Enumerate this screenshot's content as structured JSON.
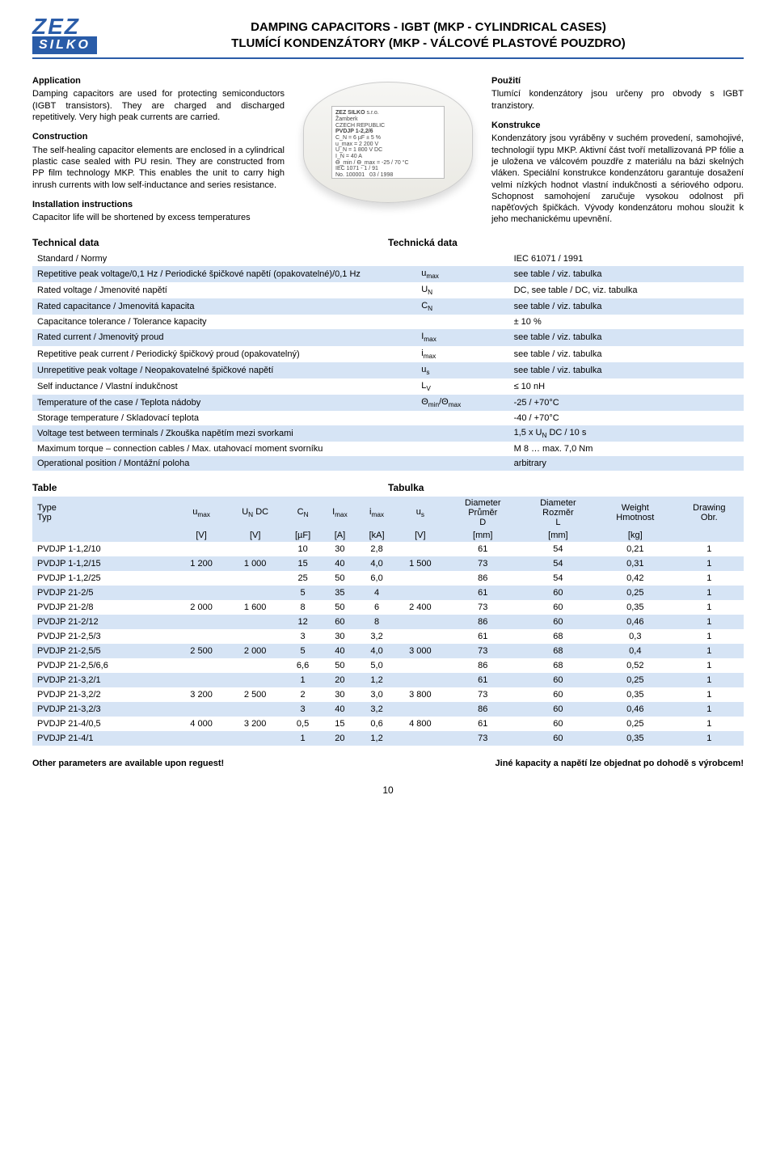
{
  "logo": {
    "top": "ZEZ",
    "bottom": "SILKO"
  },
  "title_en": "DAMPING CAPACITORS - IGBT (MKP - CYLINDRICAL CASES)",
  "title_cz": "TLUMÍCÍ KONDENZÁTORY (MKP - VÁLCOVÉ PLASTOVÉ POUZDRO)",
  "divider_color": "#2a5ca8",
  "stripe_even": "#d6e4f5",
  "left": {
    "h1": "Application",
    "p1": "Damping capacitors are used for protecting semiconductors (IGBT transistors). They are charged and discharged repetitively. Very high peak currents are carried.",
    "h2": "Construction",
    "p2": "The self-healing capacitor elements are enclosed in a cylindrical plastic case sealed with PU resin. They are constructed from PP film technology MKP. This enables the unit to carry high inrush currents with low self-inductance and series resistance.",
    "h3": "Installation instructions",
    "p3": "Capacitor life will be shortened by excess temperatures"
  },
  "right": {
    "h1": "Použití",
    "p1": "Tlumící kondenzátory jsou určeny pro obvody s IGBT tranzistory.",
    "h2": "Konstrukce",
    "p2": "Kondenzátory jsou vyráběny v suchém provedení, samohojivé, technologií typu MKP. Aktivní část tvoří metallizovaná PP fólie a je uložena ve válcovém pouzdře z materiálu na bázi skelných vláken. Speciální konstrukce kondenzátoru garantuje dosažení velmi nízkých hodnot vlastní indukčnosti a sériového odporu. Schopnost samohojení zaručuje vysokou odolnost při napěťových špičkách. Vývody kondenzátoru mohou sloužit k jeho mechanickému upevnění."
  },
  "photo_label": {
    "brand": "ZEZ SILKO",
    "loc": "Žamberk",
    "country": "CZECH REPUBLIC",
    "type": "PVDJP 1-2,2/6",
    "lines": "C_N = 6 µF ± 5 %\nu_max = 2 200 V\nU_N = 1 800 V DC\nI_N = 40 A\nϴ_min / ϴ_max = -25 / 70 °C\nIEC 1071 - 1 / 91",
    "no": "No. 100001",
    "date": "03 / 1998"
  },
  "techdata": {
    "title_en": "Technical data",
    "title_cz": "Technická data",
    "rows": [
      {
        "param": "Standard / Normy",
        "sym": "",
        "val": "IEC 61071 / 1991"
      },
      {
        "param": "Repetitive peak voltage/0,1 Hz / Periodické špičkové napětí (opakovatelné)/0,1 Hz",
        "sym": "u_max",
        "val": "see table / viz. tabulka"
      },
      {
        "param": "Rated voltage / Jmenovité napětí",
        "sym": "U_N",
        "val": "DC, see table / DC, viz. tabulka"
      },
      {
        "param": "Rated capacitance / Jmenovitá kapacita",
        "sym": "C_N",
        "val": "see table / viz. tabulka"
      },
      {
        "param": "Capacitance tolerance / Tolerance kapacity",
        "sym": "",
        "val": "± 10 %"
      },
      {
        "param": "Rated current / Jmenovitý proud",
        "sym": "I_max",
        "val": "see table / viz. tabulka"
      },
      {
        "param": "Repetitive peak current / Periodický špičkový proud (opakovatelný)",
        "sym": "i_max",
        "val": "see table / viz. tabulka"
      },
      {
        "param": "Unrepetitive peak voltage / Neopakovatelné špičkové napětí",
        "sym": "u_s",
        "val": "see table / viz. tabulka"
      },
      {
        "param": "Self inductance / Vlastní indukčnost",
        "sym": "L_V",
        "val": "≤ 10 nH"
      },
      {
        "param": "Temperature of the case / Teplota nádoby",
        "sym": "Θ_min/Θ_max",
        "val": "-25 / +70°C"
      },
      {
        "param": "Storage temperature / Skladovací teplota",
        "sym": "",
        "val": "-40 / +70°C"
      },
      {
        "param": "Voltage test between terminals / Zkouška napětím mezi svorkami",
        "sym": "",
        "val": "1,5 x U_N DC / 10 s"
      },
      {
        "param": "Maximum torque – connection cables / Max. utahovací moment svorníku",
        "sym": "",
        "val": "M 8 … max. 7,0 Nm"
      },
      {
        "param": "Operational position / Montážní poloha",
        "sym": "",
        "val": "arbitrary"
      }
    ]
  },
  "table": {
    "title_en": "Table",
    "title_cz": "Tabulka",
    "head1": [
      "Type\nTyp",
      "u_max",
      "U_N DC",
      "C_N",
      "I_max",
      "i_max",
      "u_s",
      "Diameter\nPrůměr\nD",
      "Diameter\nRozměr\nL",
      "Weight\nHmotnost",
      "Drawing\nObr."
    ],
    "head2": [
      "",
      "[V]",
      "[V]",
      "[µF]",
      "[A]",
      "[kA]",
      "[V]",
      "[mm]",
      "[mm]",
      "[kg]",
      ""
    ],
    "rows": [
      [
        "PVDJP 1-1,2/10",
        "",
        "",
        "10",
        "30",
        "2,8",
        "",
        "61",
        "54",
        "0,21",
        "1"
      ],
      [
        "PVDJP 1-1,2/15",
        "1 200",
        "1 000",
        "15",
        "40",
        "4,0",
        "1 500",
        "73",
        "54",
        "0,31",
        "1"
      ],
      [
        "PVDJP 1-1,2/25",
        "",
        "",
        "25",
        "50",
        "6,0",
        "",
        "86",
        "54",
        "0,42",
        "1"
      ],
      [
        "PVDJP 21-2/5",
        "",
        "",
        "5",
        "35",
        "4",
        "",
        "61",
        "60",
        "0,25",
        "1"
      ],
      [
        "PVDJP 21-2/8",
        "2 000",
        "1 600",
        "8",
        "50",
        "6",
        "2 400",
        "73",
        "60",
        "0,35",
        "1"
      ],
      [
        "PVDJP 21-2/12",
        "",
        "",
        "12",
        "60",
        "8",
        "",
        "86",
        "60",
        "0,46",
        "1"
      ],
      [
        "PVDJP 21-2,5/3",
        "",
        "",
        "3",
        "30",
        "3,2",
        "",
        "61",
        "68",
        "0,3",
        "1"
      ],
      [
        "PVDJP 21-2,5/5",
        "2 500",
        "2 000",
        "5",
        "40",
        "4,0",
        "3 000",
        "73",
        "68",
        "0,4",
        "1"
      ],
      [
        "PVDJP 21-2,5/6,6",
        "",
        "",
        "6,6",
        "50",
        "5,0",
        "",
        "86",
        "68",
        "0,52",
        "1"
      ],
      [
        "PVDJP 21-3,2/1",
        "",
        "",
        "1",
        "20",
        "1,2",
        "",
        "61",
        "60",
        "0,25",
        "1"
      ],
      [
        "PVDJP 21-3,2/2",
        "3 200",
        "2 500",
        "2",
        "30",
        "3,0",
        "3 800",
        "73",
        "60",
        "0,35",
        "1"
      ],
      [
        "PVDJP 21-3,2/3",
        "",
        "",
        "3",
        "40",
        "3,2",
        "",
        "86",
        "60",
        "0,46",
        "1"
      ],
      [
        "PVDJP 21-4/0,5",
        "4 000",
        "3 200",
        "0,5",
        "15",
        "0,6",
        "4 800",
        "61",
        "60",
        "0,25",
        "1"
      ],
      [
        "PVDJP 21-4/1",
        "",
        "",
        "1",
        "20",
        "1,2",
        "",
        "73",
        "60",
        "0,35",
        "1"
      ]
    ]
  },
  "footer": {
    "left": "Other parameters are available upon reguest!",
    "right": "Jiné kapacity a napětí lze objednat po dohodě s výrobcem!"
  },
  "page": "10"
}
